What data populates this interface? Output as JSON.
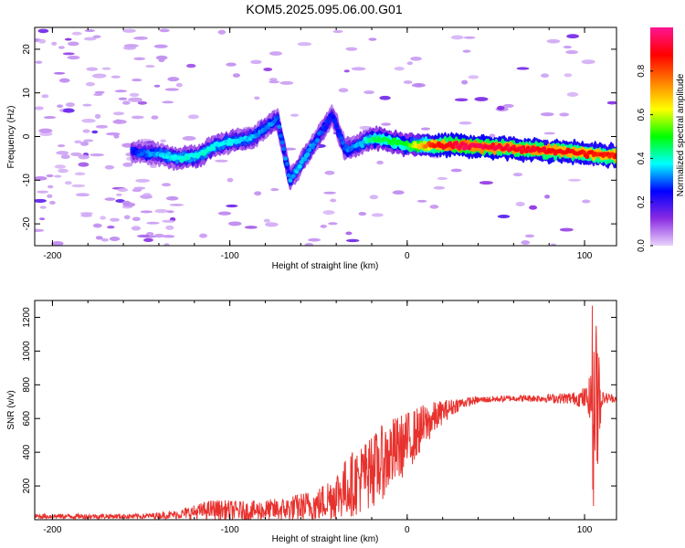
{
  "title": "KOM5.2025.095.06.00.G01",
  "chart_data": [
    {
      "type": "heatmap",
      "xlabel": "Height of straight line (km)",
      "ylabel": "Frequency (Hz)",
      "xlim": [
        -210,
        118
      ],
      "ylim": [
        -25,
        25
      ],
      "x_ticks": [
        "-200",
        "-100",
        "0",
        "100"
      ],
      "y_ticks": [
        "-20",
        "-10",
        "0",
        "10",
        "20"
      ],
      "colorbar": {
        "label": "Normalized spectral amplitude",
        "range": [
          0,
          1
        ],
        "ticks": [
          "0.0",
          "0.2",
          "0.4",
          "0.6",
          "0.8"
        ],
        "colors": [
          "#e9d4fb",
          "#8a2be2",
          "#0000ff",
          "#00ffff",
          "#00ff00",
          "#ffff00",
          "#ff7f00",
          "#ff0000",
          "#ff1493"
        ]
      },
      "ridge": [
        {
          "x": -155,
          "y": -3.5,
          "a": 0.25
        },
        {
          "x": -140,
          "y": -4.0,
          "a": 0.35
        },
        {
          "x": -130,
          "y": -5.0,
          "a": 0.38
        },
        {
          "x": -118,
          "y": -4.5,
          "a": 0.4
        },
        {
          "x": -108,
          "y": -2.0,
          "a": 0.38
        },
        {
          "x": -98,
          "y": -1.0,
          "a": 0.36
        },
        {
          "x": -88,
          "y": -0.5,
          "a": 0.34
        },
        {
          "x": -80,
          "y": 2.0,
          "a": 0.32
        },
        {
          "x": -73,
          "y": 4.0,
          "a": 0.3
        },
        {
          "x": -66,
          "y": -10.0,
          "a": 0.33
        },
        {
          "x": -58,
          "y": -5.0,
          "a": 0.36
        },
        {
          "x": -50,
          "y": 0.0,
          "a": 0.3
        },
        {
          "x": -42,
          "y": 5.0,
          "a": 0.25
        },
        {
          "x": -35,
          "y": -3.0,
          "a": 0.3
        },
        {
          "x": -25,
          "y": -1.5,
          "a": 0.35
        },
        {
          "x": -20,
          "y": -0.5,
          "a": 0.45
        },
        {
          "x": -10,
          "y": -1.0,
          "a": 0.48
        },
        {
          "x": 0,
          "y": -2.0,
          "a": 0.5
        },
        {
          "x": 15,
          "y": -2.0,
          "a": 0.85
        },
        {
          "x": 30,
          "y": -2.0,
          "a": 0.95
        },
        {
          "x": 50,
          "y": -2.5,
          "a": 0.92
        },
        {
          "x": 70,
          "y": -3.0,
          "a": 0.9
        },
        {
          "x": 90,
          "y": -3.5,
          "a": 0.88
        },
        {
          "x": 105,
          "y": -4.0,
          "a": 0.85
        },
        {
          "x": 118,
          "y": -4.5,
          "a": 0.85
        }
      ]
    },
    {
      "type": "line",
      "xlabel": "Height of straight line (km)",
      "ylabel": "SNR (v/v)",
      "xlim": [
        -210,
        118
      ],
      "ylim": [
        0,
        1300
      ],
      "x_ticks": [
        "-200",
        "-100",
        "0",
        "100"
      ],
      "y_ticks": [
        "200",
        "400",
        "600",
        "800",
        "1000",
        "1200"
      ],
      "color": "#e8322e",
      "envelope": [
        {
          "x": -210,
          "y": 20,
          "n": 15
        },
        {
          "x": -150,
          "y": 20,
          "n": 15
        },
        {
          "x": -130,
          "y": 30,
          "n": 25
        },
        {
          "x": -110,
          "y": 60,
          "n": 60
        },
        {
          "x": -90,
          "y": 50,
          "n": 60
        },
        {
          "x": -70,
          "y": 60,
          "n": 70
        },
        {
          "x": -50,
          "y": 90,
          "n": 100
        },
        {
          "x": -40,
          "y": 150,
          "n": 150
        },
        {
          "x": -30,
          "y": 220,
          "n": 200
        },
        {
          "x": -20,
          "y": 280,
          "n": 220
        },
        {
          "x": -10,
          "y": 380,
          "n": 220
        },
        {
          "x": 0,
          "y": 460,
          "n": 180
        },
        {
          "x": 10,
          "y": 560,
          "n": 130
        },
        {
          "x": 20,
          "y": 640,
          "n": 70
        },
        {
          "x": 30,
          "y": 690,
          "n": 35
        },
        {
          "x": 40,
          "y": 710,
          "n": 20
        },
        {
          "x": 60,
          "y": 720,
          "n": 18
        },
        {
          "x": 80,
          "y": 720,
          "n": 25
        },
        {
          "x": 95,
          "y": 720,
          "n": 40
        },
        {
          "x": 102,
          "y": 720,
          "n": 80
        },
        {
          "x": 105,
          "y": 700,
          "n": 300
        },
        {
          "x": 107,
          "y": 740,
          "n": 500
        },
        {
          "x": 110,
          "y": 720,
          "n": 40
        },
        {
          "x": 118,
          "y": 720,
          "n": 20
        }
      ]
    }
  ]
}
